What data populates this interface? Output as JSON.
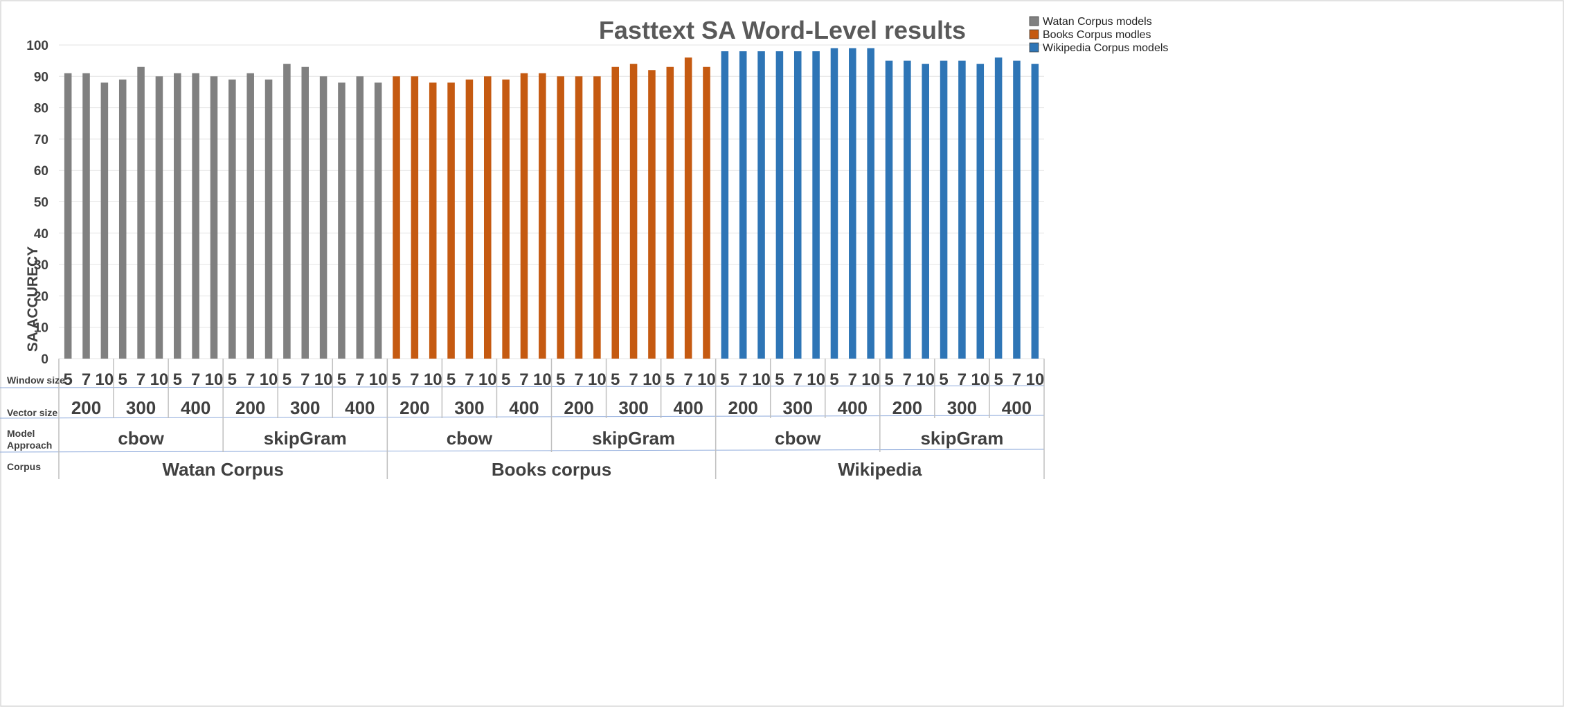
{
  "chart_data": {
    "type": "bar",
    "title": "Fasttext SA Word-Level results",
    "ylabel": "SA  ACCURECY",
    "ylim": [
      0,
      100
    ],
    "yticks": [
      0,
      10,
      20,
      30,
      40,
      50,
      60,
      70,
      80,
      90,
      100
    ],
    "grid": true,
    "legend_position": "top-right",
    "row_labels": {
      "window": "Window size",
      "vector": "Vector size",
      "model_line1": "Model",
      "model_line2": "Approach",
      "corpus": "Corpus"
    },
    "window_sizes": [
      "5",
      "7",
      "10"
    ],
    "vector_sizes": [
      "200",
      "300",
      "400"
    ],
    "approaches": [
      "cbow",
      "skipGram"
    ],
    "series": [
      {
        "name": "Watan Corpus models",
        "corpus": "Watan  Corpus",
        "color": "#808080",
        "values": [
          91,
          91,
          88,
          89,
          93,
          90,
          91,
          91,
          90,
          89,
          91,
          89,
          94,
          93,
          90,
          88,
          90,
          88
        ]
      },
      {
        "name": "Books Corpus modles",
        "corpus": "Books corpus",
        "color": "#c55a11",
        "values": [
          90,
          90,
          88,
          88,
          89,
          90,
          89,
          91,
          91,
          90,
          90,
          90,
          93,
          94,
          92,
          93,
          96,
          93
        ]
      },
      {
        "name": "Wikipedia Corpus models",
        "corpus": "Wikipedia",
        "color": "#2e75b6",
        "values": [
          98,
          98,
          98,
          98,
          98,
          98,
          99,
          99,
          99,
          95,
          95,
          94,
          95,
          95,
          94,
          96,
          95,
          94
        ]
      }
    ]
  }
}
